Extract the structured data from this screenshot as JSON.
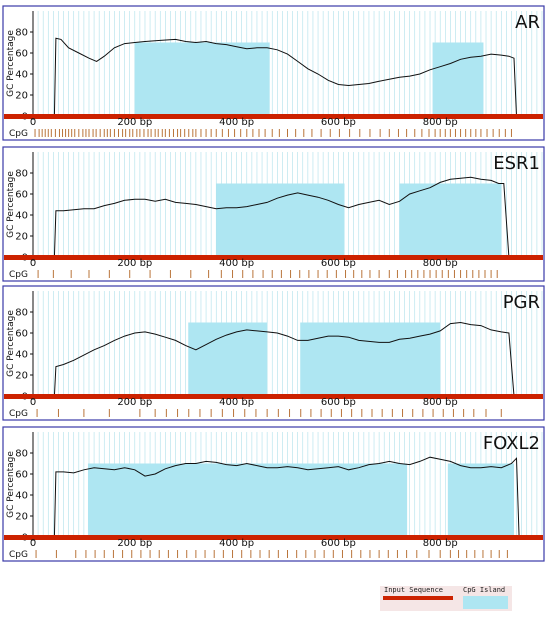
{
  "chart_data": [
    {
      "type": "line",
      "gene": "AR",
      "ylabel": "GC Percentage",
      "ylim": [
        0,
        100
      ],
      "yticks": [
        "0",
        "20",
        "40",
        "60",
        "80"
      ],
      "xlim": [
        0,
        1000
      ],
      "xticks": [
        {
          "value": 0,
          "label": "0"
        },
        {
          "value": 200,
          "label": "200  bp"
        },
        {
          "value": 400,
          "label": "400  bp"
        },
        {
          "value": 600,
          "label": "600  bp"
        },
        {
          "value": 800,
          "label": "800  bp"
        }
      ],
      "sequence_range": [
        42,
        950
      ],
      "islands": [
        [
          200,
          465
        ],
        [
          785,
          885
        ]
      ],
      "series": [
        {
          "x": [
            42,
            45,
            55,
            70,
            90,
            110,
            125,
            140,
            160,
            180,
            200,
            220,
            250,
            280,
            300,
            320,
            340,
            360,
            380,
            400,
            420,
            440,
            460,
            480,
            500,
            520,
            540,
            560,
            580,
            600,
            620,
            640,
            660,
            680,
            700,
            720,
            740,
            760,
            780,
            800,
            820,
            840,
            860,
            880,
            900,
            920,
            935,
            945,
            950
          ],
          "y": [
            0,
            74,
            73,
            65,
            60,
            55,
            52,
            57,
            65,
            69,
            70,
            71,
            72,
            73,
            71,
            70,
            71,
            69,
            68,
            66,
            64,
            65,
            65,
            63,
            59,
            52,
            45,
            40,
            34,
            30,
            29,
            30,
            31,
            33,
            35,
            37,
            38,
            40,
            44,
            47,
            50,
            54,
            56,
            57,
            59,
            58,
            57,
            55,
            0
          ]
        }
      ],
      "cpg_positions": [
        4,
        12,
        18,
        24,
        30,
        36,
        44,
        52,
        58,
        64,
        70,
        76,
        82,
        90,
        98,
        104,
        110,
        118,
        124,
        132,
        140,
        146,
        152,
        160,
        168,
        176,
        182,
        190,
        196,
        204,
        210,
        218,
        226,
        232,
        240,
        246,
        254,
        260,
        268,
        276,
        284,
        290,
        298,
        306,
        314,
        320,
        330,
        340,
        350,
        360,
        372,
        384,
        396,
        408,
        420,
        432,
        444,
        456,
        470,
        484,
        500,
        516,
        532,
        548,
        566,
        584,
        602,
        622,
        642,
        662,
        682,
        700,
        718,
        734,
        750,
        764,
        778,
        790,
        800,
        810,
        820,
        830,
        840,
        850,
        860,
        870,
        880,
        892,
        904,
        916,
        928,
        940
      ]
    },
    {
      "type": "line",
      "gene": "ESR1",
      "ylabel": "GC Percentage",
      "ylim": [
        0,
        100
      ],
      "yticks": [
        "0",
        "20",
        "40",
        "60",
        "80"
      ],
      "xlim": [
        0,
        1000
      ],
      "xticks": [
        {
          "value": 0,
          "label": "0"
        },
        {
          "value": 200,
          "label": "200  bp"
        },
        {
          "value": 400,
          "label": "400  bp"
        },
        {
          "value": 600,
          "label": "600  bp"
        },
        {
          "value": 800,
          "label": "800  bp"
        }
      ],
      "sequence_range": [
        42,
        935
      ],
      "islands": [
        [
          360,
          612
        ],
        [
          720,
          920
        ]
      ],
      "series": [
        {
          "x": [
            42,
            45,
            60,
            80,
            100,
            120,
            140,
            160,
            180,
            200,
            220,
            240,
            260,
            280,
            300,
            320,
            340,
            360,
            380,
            400,
            420,
            440,
            460,
            480,
            500,
            520,
            540,
            560,
            580,
            600,
            620,
            640,
            660,
            680,
            700,
            720,
            740,
            760,
            780,
            800,
            820,
            840,
            860,
            880,
            900,
            915,
            925,
            935
          ],
          "y": [
            0,
            44,
            44,
            45,
            46,
            46,
            49,
            51,
            54,
            55,
            55,
            53,
            55,
            52,
            51,
            50,
            48,
            46,
            47,
            47,
            48,
            50,
            52,
            56,
            59,
            61,
            59,
            57,
            54,
            50,
            47,
            50,
            52,
            54,
            50,
            53,
            60,
            63,
            66,
            71,
            74,
            75,
            76,
            74,
            73,
            70,
            70,
            0
          ]
        }
      ],
      "cpg_positions": [
        10,
        40,
        75,
        110,
        150,
        190,
        230,
        270,
        310,
        345,
        370,
        392,
        412,
        432,
        452,
        470,
        488,
        506,
        524,
        542,
        560,
        578,
        596,
        614,
        630,
        646,
        662,
        680,
        700,
        716,
        732,
        744,
        756,
        768,
        780,
        792,
        804,
        816,
        828,
        840,
        852,
        864,
        876,
        888,
        900,
        912
      ]
    },
    {
      "type": "line",
      "gene": "PGR",
      "ylabel": "GC Percentage",
      "ylim": [
        0,
        100
      ],
      "yticks": [
        "0",
        "20",
        "40",
        "60",
        "80"
      ],
      "xlim": [
        0,
        1000
      ],
      "xticks": [
        {
          "value": 0,
          "label": "0"
        },
        {
          "value": 200,
          "label": "200  bp"
        },
        {
          "value": 400,
          "label": "400  bp"
        },
        {
          "value": 600,
          "label": "600  bp"
        },
        {
          "value": 800,
          "label": "800  bp"
        }
      ],
      "sequence_range": [
        42,
        945
      ],
      "islands": [
        [
          305,
          460
        ],
        [
          525,
          800
        ]
      ],
      "series": [
        {
          "x": [
            42,
            45,
            60,
            80,
            100,
            120,
            140,
            160,
            180,
            200,
            220,
            240,
            260,
            280,
            300,
            320,
            340,
            360,
            380,
            400,
            420,
            440,
            460,
            480,
            500,
            520,
            540,
            560,
            580,
            600,
            620,
            640,
            660,
            680,
            700,
            720,
            740,
            760,
            780,
            800,
            820,
            840,
            860,
            880,
            900,
            920,
            935,
            945
          ],
          "y": [
            0,
            28,
            30,
            34,
            39,
            44,
            48,
            53,
            57,
            60,
            61,
            59,
            56,
            53,
            48,
            44,
            49,
            54,
            58,
            61,
            63,
            62,
            61,
            60,
            57,
            53,
            53,
            55,
            57,
            57,
            56,
            53,
            52,
            51,
            51,
            54,
            55,
            57,
            59,
            62,
            69,
            70,
            68,
            67,
            63,
            61,
            60,
            0
          ]
        }
      ],
      "cpg_positions": [
        8,
        50,
        100,
        150,
        210,
        240,
        262,
        284,
        306,
        328,
        350,
        372,
        394,
        416,
        438,
        460,
        482,
        504,
        526,
        546,
        566,
        586,
        606,
        626,
        646,
        666,
        686,
        706,
        726,
        746,
        766,
        786,
        806,
        826,
        846,
        866,
        890,
        920
      ]
    },
    {
      "type": "line",
      "gene": "FOXL2",
      "ylabel": "GC Percentage",
      "ylim": [
        0,
        100
      ],
      "yticks": [
        "0",
        "20",
        "40",
        "60",
        "80"
      ],
      "xlim": [
        0,
        1000
      ],
      "xticks": [
        {
          "value": 0,
          "label": "0"
        },
        {
          "value": 200,
          "label": "200  bp"
        },
        {
          "value": 400,
          "label": "400  bp"
        },
        {
          "value": 600,
          "label": "600  bp"
        },
        {
          "value": 800,
          "label": "800  bp"
        }
      ],
      "sequence_range": [
        42,
        955
      ],
      "islands": [
        [
          108,
          735
        ],
        [
          815,
          945
        ]
      ],
      "series": [
        {
          "x": [
            42,
            45,
            60,
            80,
            100,
            120,
            140,
            160,
            180,
            200,
            220,
            240,
            260,
            280,
            300,
            320,
            340,
            360,
            380,
            400,
            420,
            440,
            460,
            480,
            500,
            520,
            540,
            560,
            580,
            600,
            620,
            640,
            660,
            680,
            700,
            720,
            740,
            760,
            780,
            800,
            820,
            840,
            860,
            880,
            900,
            920,
            940,
            950,
            955
          ],
          "y": [
            0,
            62,
            62,
            61,
            64,
            66,
            65,
            64,
            66,
            64,
            58,
            60,
            65,
            68,
            70,
            70,
            72,
            71,
            69,
            68,
            70,
            68,
            66,
            66,
            67,
            66,
            64,
            65,
            66,
            67,
            64,
            66,
            69,
            70,
            72,
            70,
            69,
            72,
            76,
            74,
            72,
            68,
            66,
            66,
            67,
            66,
            70,
            75,
            0
          ]
        }
      ],
      "cpg_positions": [
        6,
        46,
        84,
        104,
        122,
        140,
        158,
        176,
        194,
        212,
        230,
        248,
        266,
        284,
        302,
        320,
        338,
        356,
        374,
        392,
        410,
        428,
        446,
        464,
        482,
        500,
        518,
        536,
        554,
        572,
        590,
        608,
        626,
        644,
        662,
        680,
        698,
        716,
        734,
        754,
        778,
        800,
        820,
        836,
        852,
        868,
        884,
        900,
        916,
        932
      ]
    }
  ],
  "panel_labels": {
    "cpg": "CpG"
  },
  "legend": {
    "input_sequence": {
      "label": "Input Sequence",
      "color": "#cc2200"
    },
    "cpg_island": {
      "label": "CpG Island",
      "color": "#aee6f2"
    }
  },
  "colors": {
    "frame": "#3a3aa8",
    "grid": "#aee0ea",
    "island": "#aee6f2",
    "baseline": "#cc2200",
    "gc_line": "#111111",
    "cpg_tick": "#b9743a"
  }
}
